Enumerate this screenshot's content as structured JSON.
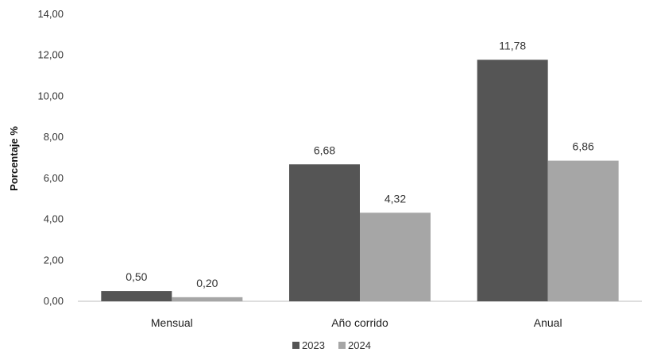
{
  "chart_data": {
    "type": "bar",
    "title": "",
    "xlabel": "",
    "ylabel": "Porcentaje %",
    "ylim": [
      0,
      14
    ],
    "yticks": [
      "0,00",
      "2,00",
      "4,00",
      "6,00",
      "8,00",
      "10,00",
      "12,00",
      "14,00"
    ],
    "categories": [
      "Mensual",
      "Año corrido",
      "Anual"
    ],
    "series": [
      {
        "name": "2023",
        "color": "#555555",
        "values": [
          0.5,
          6.68,
          11.78
        ],
        "labels": [
          "0,50",
          "6,68",
          "11,78"
        ]
      },
      {
        "name": "2024",
        "color": "#a6a6a6",
        "values": [
          0.2,
          4.32,
          6.86
        ],
        "labels": [
          "0,20",
          "4,32",
          "6,86"
        ]
      }
    ],
    "grid": false,
    "legend_position": "bottom"
  }
}
